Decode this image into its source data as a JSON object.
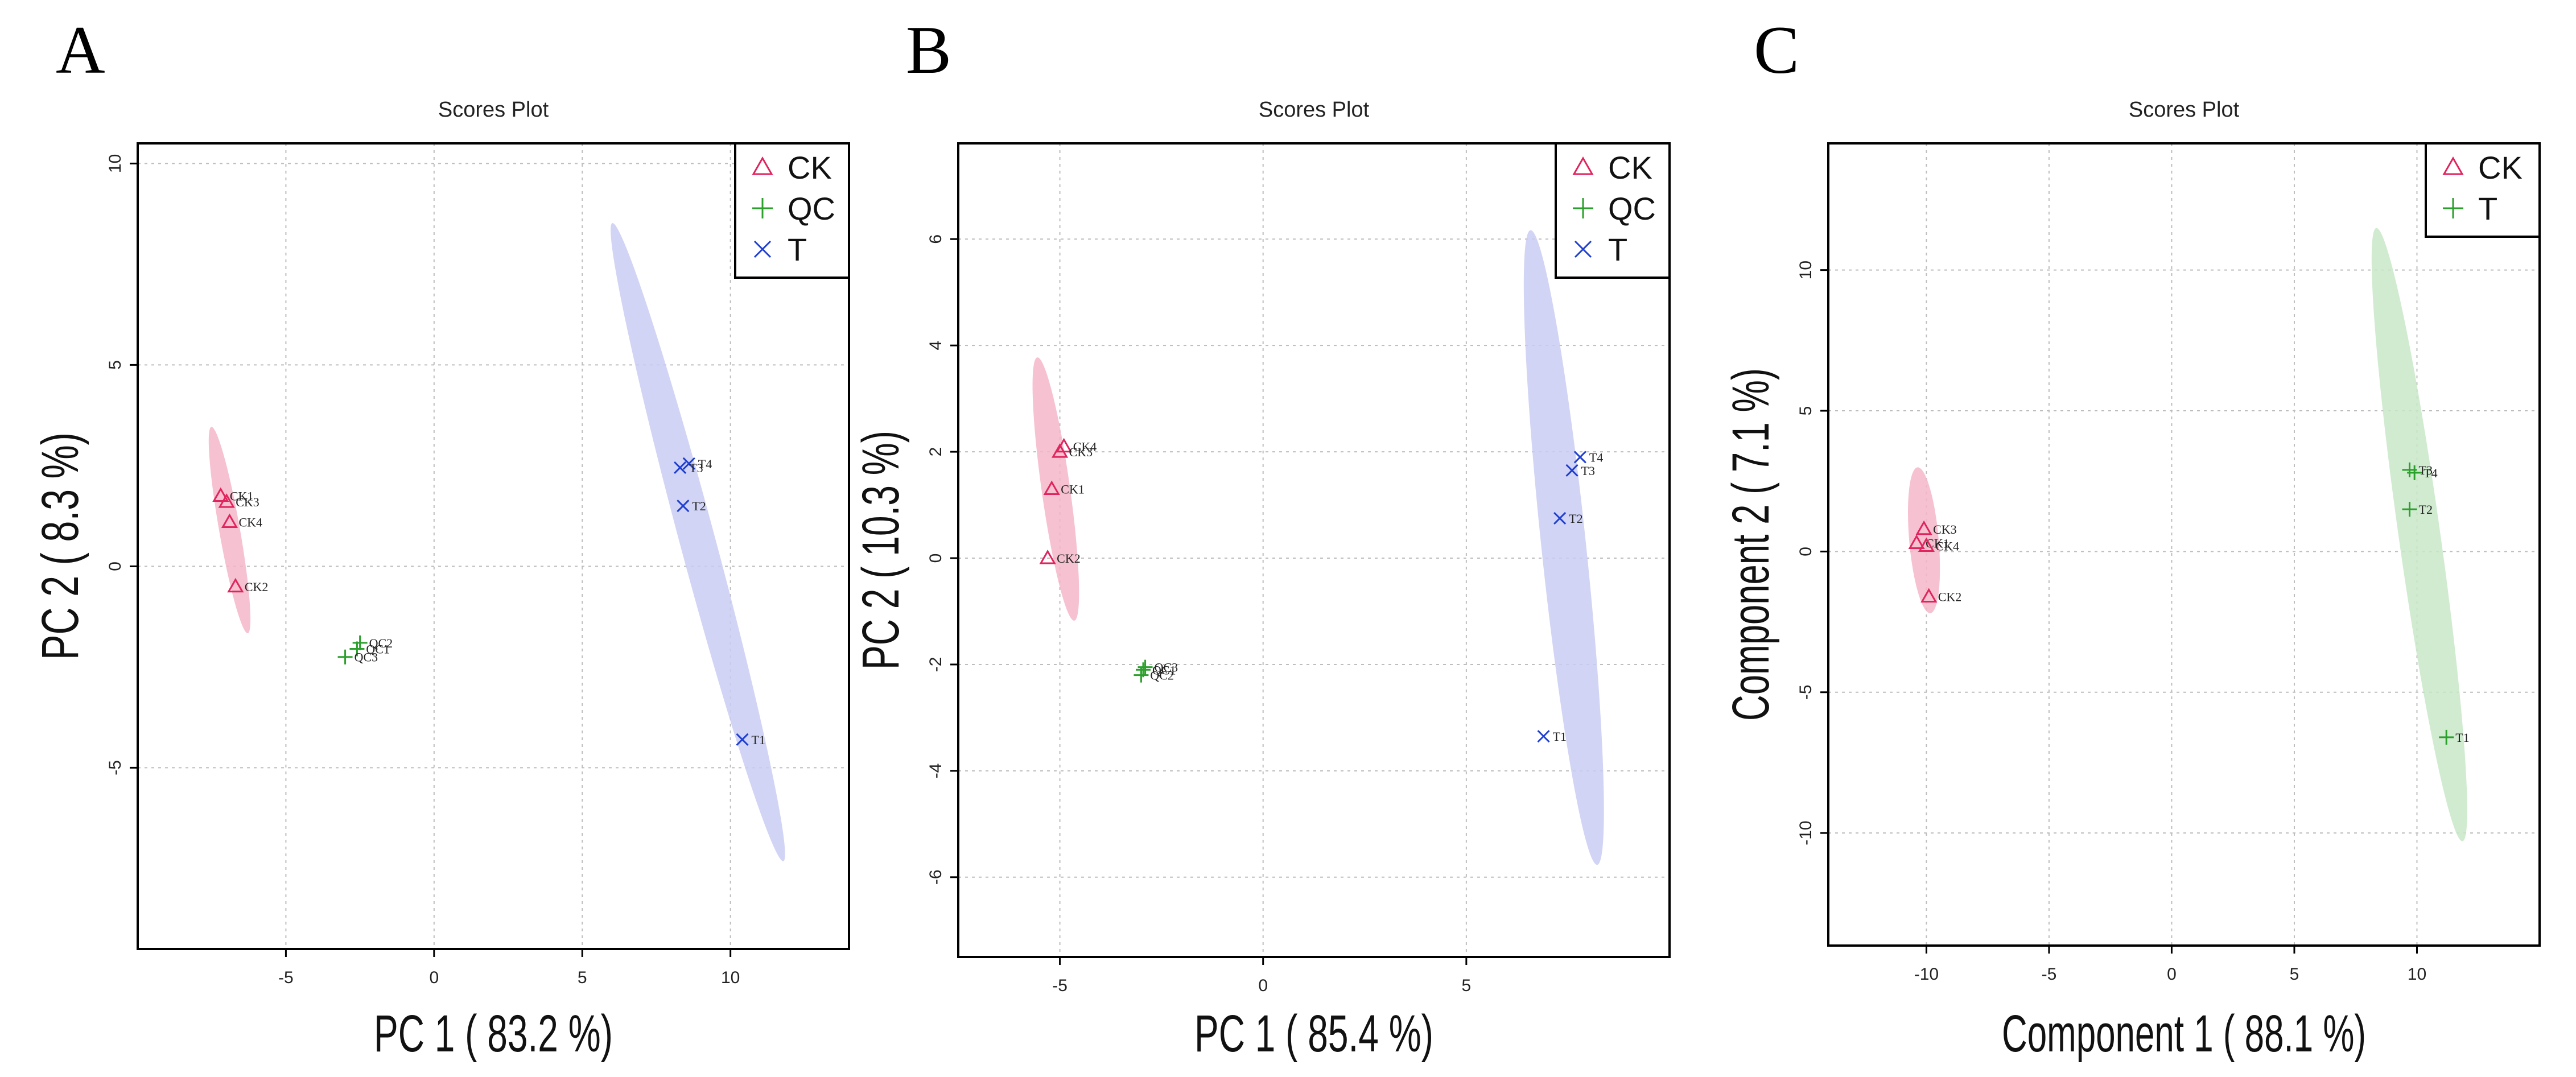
{
  "colors": {
    "CK": "#e0245e",
    "QC": "#2ca02c",
    "T": "#1f3fd1",
    "CK_ellipse": "#f4b6c8",
    "T_ellipse": "#c9cdf2",
    "T_ellipse_plsda": "#c8e8c8"
  },
  "chart_data": [
    {
      "type": "scatter",
      "panel_label": "A",
      "title": "Scores Plot",
      "xlabel": "PC 1 ( 83.2 %)",
      "ylabel": "PC 2 ( 8.3 %)",
      "xlim": [
        -10,
        14
      ],
      "ylim": [
        -9.5,
        10.5
      ],
      "xticks": [
        -5,
        0,
        5,
        10
      ],
      "yticks": [
        -5,
        0,
        5,
        10
      ],
      "legend": [
        {
          "name": "CK",
          "marker": "triangle",
          "color": "#e0245e"
        },
        {
          "name": "QC",
          "marker": "plus",
          "color": "#2ca02c"
        },
        {
          "name": "T",
          "marker": "cross",
          "color": "#1f3fd1"
        }
      ],
      "series": [
        {
          "name": "CK",
          "marker": "triangle",
          "color": "#e0245e",
          "points": [
            {
              "label": "CK1",
              "x": -7.2,
              "y": 1.75
            },
            {
              "label": "CK3",
              "x": -7.0,
              "y": 1.6
            },
            {
              "label": "CK4",
              "x": -6.9,
              "y": 1.1
            },
            {
              "label": "CK2",
              "x": -6.7,
              "y": -0.5
            }
          ]
        },
        {
          "name": "QC",
          "marker": "plus",
          "color": "#2ca02c",
          "points": [
            {
              "label": "QC2",
              "x": -2.5,
              "y": -1.9
            },
            {
              "label": "QC1",
              "x": -2.6,
              "y": -2.05
            },
            {
              "label": "QC3",
              "x": -3.0,
              "y": -2.25
            }
          ]
        },
        {
          "name": "T",
          "marker": "cross",
          "color": "#1f3fd1",
          "points": [
            {
              "label": "T4",
              "x": 8.6,
              "y": 2.55
            },
            {
              "label": "T3",
              "x": 8.3,
              "y": 2.45
            },
            {
              "label": "T2",
              "x": 8.4,
              "y": 1.5
            },
            {
              "label": "T1",
              "x": 10.4,
              "y": -4.3
            }
          ]
        }
      ],
      "ellipses": [
        {
          "group": "CK",
          "cx": -6.9,
          "cy": 0.9,
          "rx": 0.35,
          "ry": 2.6,
          "angle": 10,
          "color": "#f4b6c8"
        },
        {
          "group": "T",
          "cx": 8.9,
          "cy": 0.6,
          "rx": 0.6,
          "ry": 8.2,
          "angle": 15,
          "color": "#c9cdf2"
        }
      ]
    },
    {
      "type": "scatter",
      "panel_label": "B",
      "title": "Scores Plot",
      "xlabel": "PC 1 ( 85.4 %)",
      "ylabel": "PC 2 ( 10.3 %)",
      "xlim": [
        -7.5,
        10
      ],
      "ylim": [
        -7.5,
        7.8
      ],
      "xticks": [
        -5,
        0,
        5
      ],
      "yticks": [
        -6,
        -4,
        -2,
        0,
        2,
        4,
        6
      ],
      "legend": [
        {
          "name": "CK",
          "marker": "triangle",
          "color": "#e0245e"
        },
        {
          "name": "QC",
          "marker": "plus",
          "color": "#2ca02c"
        },
        {
          "name": "T",
          "marker": "cross",
          "color": "#1f3fd1"
        }
      ],
      "series": [
        {
          "name": "CK",
          "marker": "triangle",
          "color": "#e0245e",
          "points": [
            {
              "label": "CK4",
              "x": -4.9,
              "y": 2.1
            },
            {
              "label": "CK3",
              "x": -5.0,
              "y": 2.0
            },
            {
              "label": "CK1",
              "x": -5.2,
              "y": 1.3
            },
            {
              "label": "CK2",
              "x": -5.3,
              "y": 0.0
            }
          ]
        },
        {
          "name": "QC",
          "marker": "plus",
          "color": "#2ca02c",
          "points": [
            {
              "label": "QC3",
              "x": -2.9,
              "y": -2.05
            },
            {
              "label": "QC1",
              "x": -2.95,
              "y": -2.1
            },
            {
              "label": "QC2",
              "x": -3.0,
              "y": -2.2
            }
          ]
        },
        {
          "name": "T",
          "marker": "cross",
          "color": "#1f3fd1",
          "points": [
            {
              "label": "T4",
              "x": 7.8,
              "y": 1.9
            },
            {
              "label": "T3",
              "x": 7.6,
              "y": 1.65
            },
            {
              "label": "T2",
              "x": 7.3,
              "y": 0.75
            },
            {
              "label": "T1",
              "x": 6.9,
              "y": -3.35
            }
          ]
        }
      ],
      "ellipses": [
        {
          "group": "CK",
          "cx": -5.1,
          "cy": 1.3,
          "rx": 0.35,
          "ry": 2.5,
          "angle": 8,
          "color": "#f4b6c8"
        },
        {
          "group": "T",
          "cx": 7.4,
          "cy": 0.2,
          "rx": 0.55,
          "ry": 6.0,
          "angle": 6,
          "color": "#c9cdf2"
        }
      ]
    },
    {
      "type": "scatter",
      "panel_label": "C",
      "title": "Scores Plot",
      "xlabel": "Component 1 ( 88.1 %)",
      "ylabel": "Component 2 ( 7.1 %)",
      "xlim": [
        -14,
        15
      ],
      "ylim": [
        -14,
        14.5
      ],
      "xticks": [
        -10,
        -5,
        0,
        5,
        10
      ],
      "yticks": [
        -10,
        -5,
        0,
        5,
        10
      ],
      "legend": [
        {
          "name": "CK",
          "marker": "triangle",
          "color": "#e0245e"
        },
        {
          "name": "T",
          "marker": "plus",
          "color": "#2ca02c"
        }
      ],
      "series": [
        {
          "name": "CK",
          "marker": "triangle",
          "color": "#e0245e",
          "points": [
            {
              "label": "CK3",
              "x": -10.1,
              "y": 0.8
            },
            {
              "label": "CK1",
              "x": -10.4,
              "y": 0.3
            },
            {
              "label": "CK4",
              "x": -10.0,
              "y": 0.2
            },
            {
              "label": "CK2",
              "x": -9.9,
              "y": -1.6
            }
          ]
        },
        {
          "name": "T",
          "marker": "plus",
          "color": "#2ca02c",
          "points": [
            {
              "label": "T3",
              "x": 9.7,
              "y": 2.9
            },
            {
              "label": "T4",
              "x": 9.9,
              "y": 2.8
            },
            {
              "label": "T2",
              "x": 9.7,
              "y": 1.5
            },
            {
              "label": "T1",
              "x": 11.2,
              "y": -6.6
            }
          ]
        }
      ],
      "ellipses": [
        {
          "group": "CK",
          "cx": -10.1,
          "cy": 0.4,
          "rx": 0.6,
          "ry": 2.6,
          "angle": 5,
          "color": "#f4b6c8"
        },
        {
          "group": "T",
          "cx": 10.1,
          "cy": 0.6,
          "rx": 0.85,
          "ry": 11.0,
          "angle": 8,
          "color": "#c8e8c8"
        }
      ]
    }
  ]
}
